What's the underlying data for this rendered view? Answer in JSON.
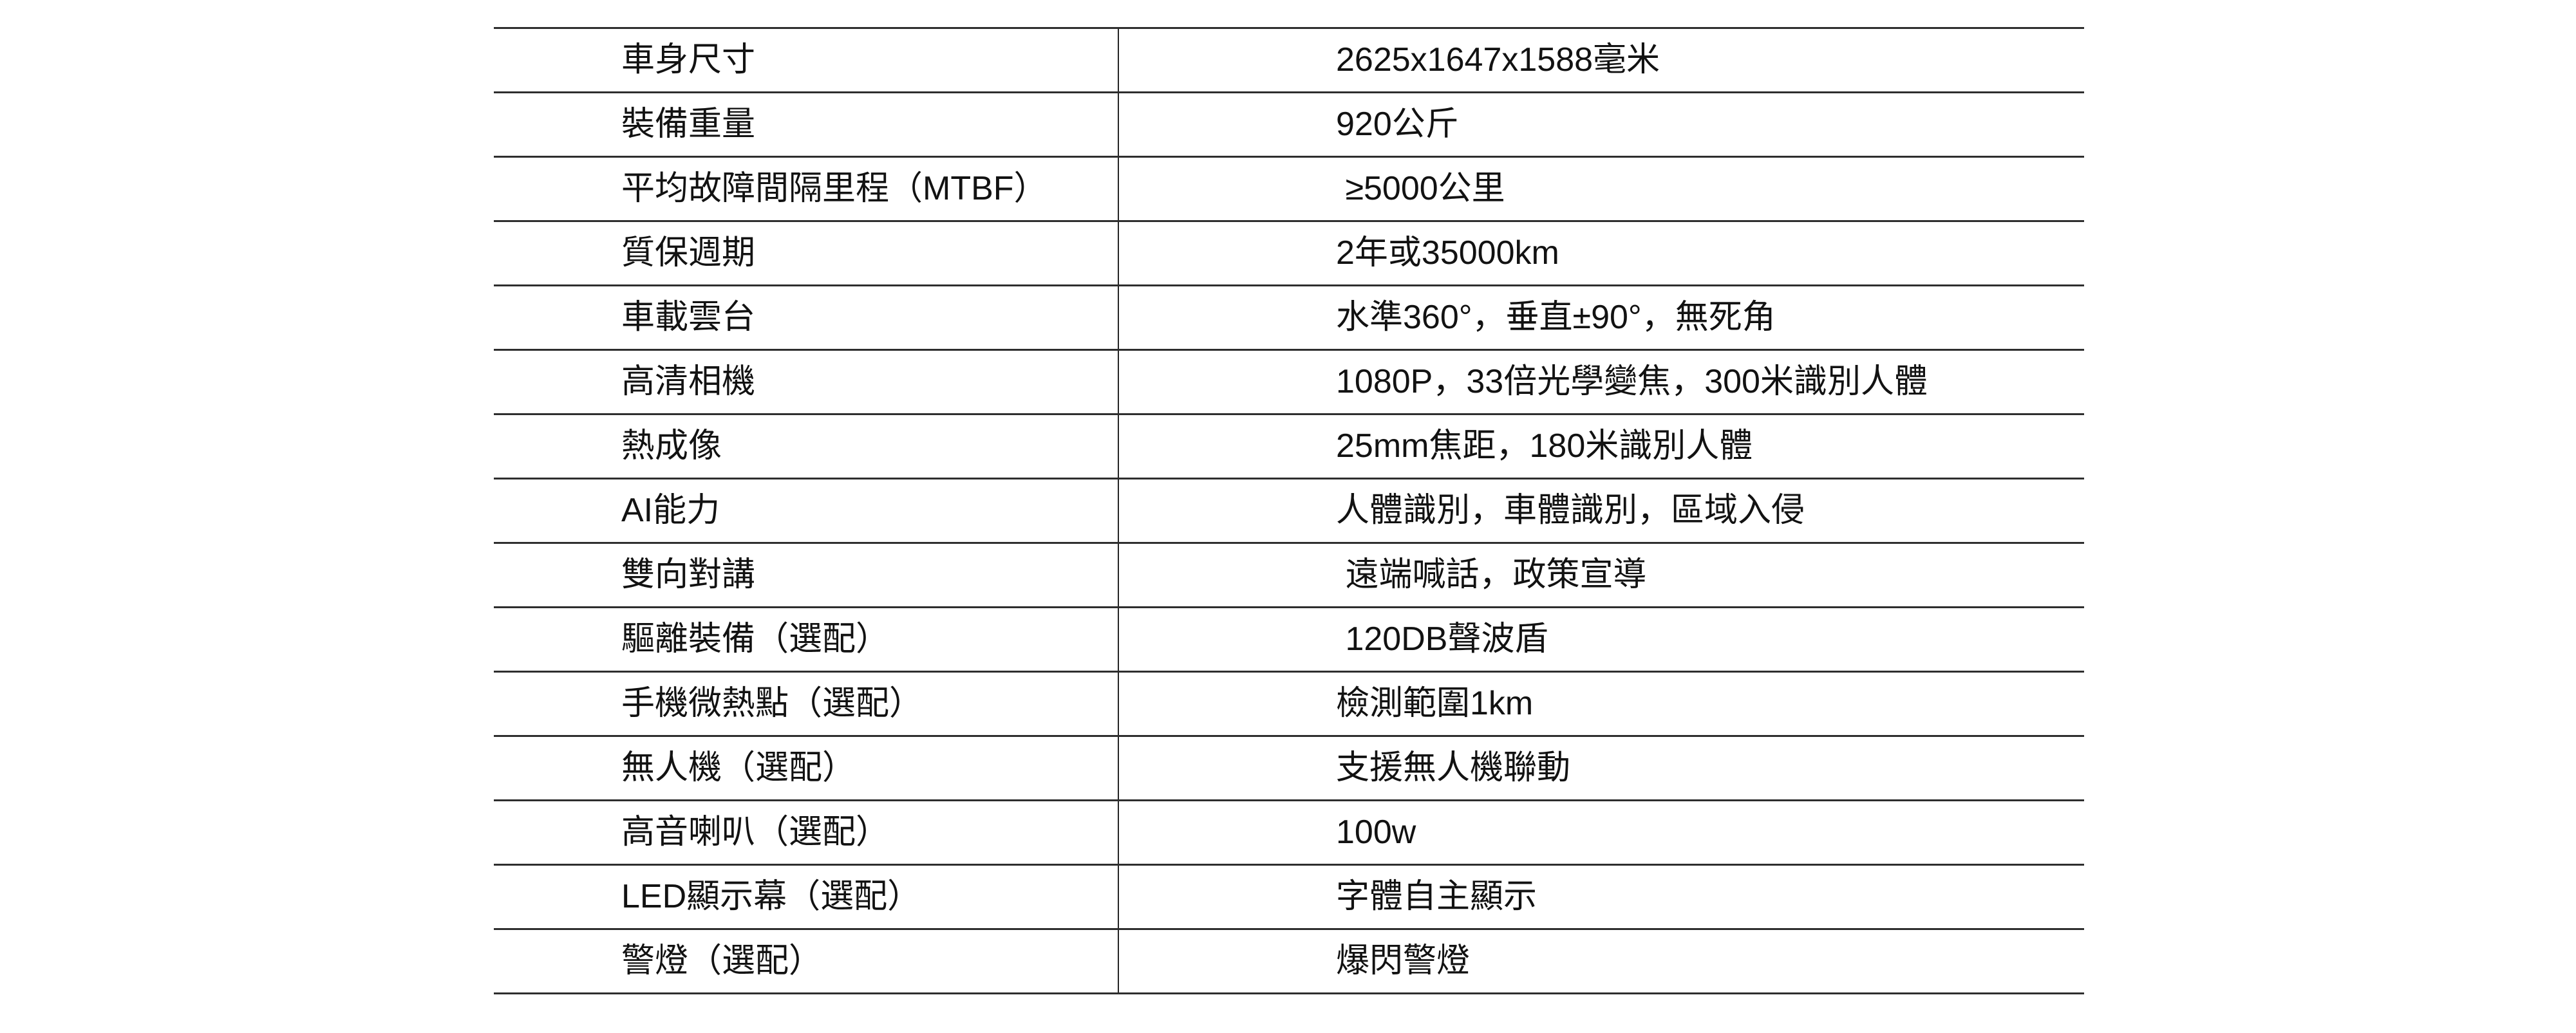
{
  "table": {
    "colors": {
      "background": "#ffffff",
      "line": "#2e2e2e",
      "divider": "#242424",
      "text": "#121212"
    },
    "rows": [
      {
        "label": "車身尺寸",
        "value": "2625x1647x1588毫米"
      },
      {
        "label": "裝備重量",
        "value": "920公斤"
      },
      {
        "label": "平均故障間隔里程（MTBF）",
        "value": " ≥5000公里"
      },
      {
        "label": "質保週期",
        "value": "2年或35000km"
      },
      {
        "label": "車載雲台",
        "value": "水準360°，垂直±90°，無死角"
      },
      {
        "label": "高清相機",
        "value": "1080P，33倍光學變焦，300米識別人體"
      },
      {
        "label": "熱成像",
        "value": "25mm焦距，180米識別人體"
      },
      {
        "label": "AI能力",
        "value": "人體識別，車體識別，區域入侵"
      },
      {
        "label": "雙向對講",
        "value": " 遠端喊話，政策宣導"
      },
      {
        "label": "驅離裝備（選配）",
        "value": " 120DB聲波盾"
      },
      {
        "label": "手機微熱點（選配）",
        "value": "檢測範圍1km"
      },
      {
        "label": "無人機（選配）",
        "value": "支援無人機聯動"
      },
      {
        "label": "高音喇叭（選配）",
        "value": "100w"
      },
      {
        "label": "LED顯示幕（選配）",
        "value": "字體自主顯示"
      },
      {
        "label": "警燈（選配）",
        "value": "爆閃警燈"
      }
    ]
  }
}
